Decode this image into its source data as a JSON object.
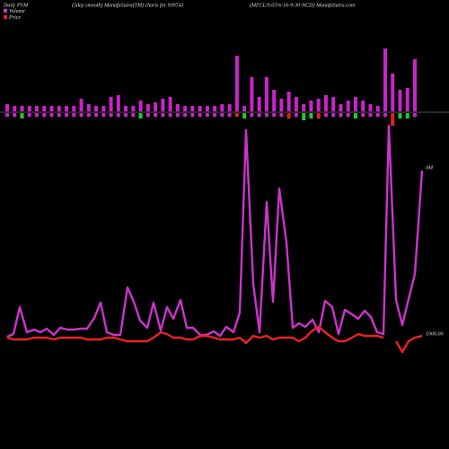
{
  "chart_data": [
    {
      "type": "bar",
      "title": "Daily PVM",
      "subtitle": "(5day smooth) MunafaSutra(TM) charts for 939743",
      "caption": "(MFCL/9.65%-16-9-30-NCD) MunafaSutra.com",
      "series": [
        {
          "color": "#cc22cc",
          "values": [
            8,
            6,
            6,
            6,
            6,
            6,
            6,
            6,
            6,
            6,
            14,
            8,
            6,
            6,
            16,
            18,
            6,
            6,
            12,
            8,
            10,
            14,
            16,
            8,
            6,
            6,
            6,
            6,
            6,
            8,
            8,
            62,
            6,
            38,
            16,
            38,
            24,
            14,
            22,
            16,
            8,
            12,
            14,
            18,
            16,
            8,
            12,
            16,
            12,
            8,
            6,
            70,
            42,
            24,
            26,
            58
          ]
        },
        {
          "colors": [
            "#cc22cc",
            "#cc22cc",
            "#22cc22",
            "#cc22cc",
            "#cc22cc",
            "#cc22cc",
            "#cc22cc",
            "#cc22cc",
            "#cc22cc",
            "#cc22cc",
            "#cc22cc",
            "#cc22cc",
            "#cc22cc",
            "#cc22cc",
            "#cc22cc",
            "#cc22cc",
            "#cc22cc",
            "#cc22cc",
            "#22cc22",
            "#cc22cc",
            "#cc22cc",
            "#cc22cc",
            "#cc22cc",
            "#cc22cc",
            "#cc22cc",
            "#cc22cc",
            "#cc22cc",
            "#cc22cc",
            "#cc22cc",
            "#cc22cc",
            "#cc22cc",
            "#dd2222",
            "#22cc22",
            "#cc22cc",
            "#cc22cc",
            "#cc22cc",
            "#cc22cc",
            "#cc22cc",
            "#dd2222",
            "#cc22cc",
            "#22cc22",
            "#22cc22",
            "#dd2222",
            "#cc22cc",
            "#cc22cc",
            "#cc22cc",
            "#cc22cc",
            "#22cc22",
            "#cc22cc",
            "#cc22cc",
            "#cc22cc",
            "#cc22cc",
            "#dd2222",
            "#22cc22",
            "#22cc22",
            "#cc22cc"
          ],
          "values": [
            -4,
            -4,
            -6,
            -4,
            -4,
            -4,
            -4,
            -4,
            -4,
            -4,
            -4,
            -4,
            -4,
            -4,
            -4,
            -4,
            -4,
            -4,
            -6,
            -4,
            -4,
            -4,
            -4,
            -4,
            -4,
            -4,
            -4,
            -4,
            -4,
            -4,
            -4,
            -4,
            -6,
            -4,
            -4,
            -4,
            -4,
            -4,
            -6,
            -4,
            -8,
            -6,
            -6,
            -4,
            -4,
            -4,
            -4,
            -6,
            -4,
            -4,
            -4,
            -4,
            -14,
            -6,
            -6,
            -4
          ]
        }
      ]
    },
    {
      "type": "line",
      "annotations": [
        "0M",
        "1000.00"
      ],
      "x": [
        8,
        15,
        22,
        30,
        38,
        45,
        52,
        60,
        67,
        75,
        82,
        90,
        97,
        105,
        112,
        119,
        127,
        134,
        142,
        149,
        156,
        164,
        171,
        179,
        186,
        193,
        201,
        208,
        215,
        223,
        230,
        238,
        245,
        252,
        260,
        267,
        274,
        282,
        289,
        297,
        304,
        311,
        319,
        326,
        333,
        340,
        348,
        355,
        362,
        370,
        377,
        384,
        392,
        399,
        406,
        413,
        420,
        427,
        433,
        441,
        448,
        455,
        462,
        470
      ],
      "xlim": [
        0,
        500
      ],
      "ylim": [
        -10,
        250
      ],
      "series": [
        {
          "name": "Volume",
          "color": "#cc33cc",
          "values": [
            15,
            18,
            48,
            20,
            23,
            20,
            24,
            17,
            25,
            23,
            23,
            24,
            24,
            36,
            53,
            20,
            17,
            17,
            70,
            54,
            33,
            25,
            53,
            22,
            48,
            35,
            56,
            25,
            25,
            17,
            17,
            21,
            16,
            26,
            20,
            42,
            245,
            74,
            20,
            165,
            54,
            180,
            120,
            25,
            30,
            26,
            34,
            20,
            55,
            48,
            18,
            45,
            40,
            35,
            44,
            37,
            20,
            18,
            250,
            56,
            28,
            57,
            85,
            200
          ]
        },
        {
          "name": "Price",
          "color": "#ee2222",
          "values": [
            14,
            12,
            12,
            12,
            14,
            14,
            14,
            12,
            14,
            14,
            14,
            14,
            12,
            12,
            12,
            14,
            14,
            12,
            10,
            10,
            10,
            10,
            14,
            20,
            18,
            14,
            14,
            12,
            12,
            16,
            16,
            14,
            12,
            12,
            12,
            14,
            8,
            16,
            14,
            16,
            12,
            14,
            14,
            14,
            10,
            14,
            22,
            26,
            20,
            14,
            10,
            10,
            14,
            18,
            16,
            16,
            16,
            14,
            null,
            10,
            -2,
            10,
            14,
            16
          ]
        }
      ]
    }
  ]
}
